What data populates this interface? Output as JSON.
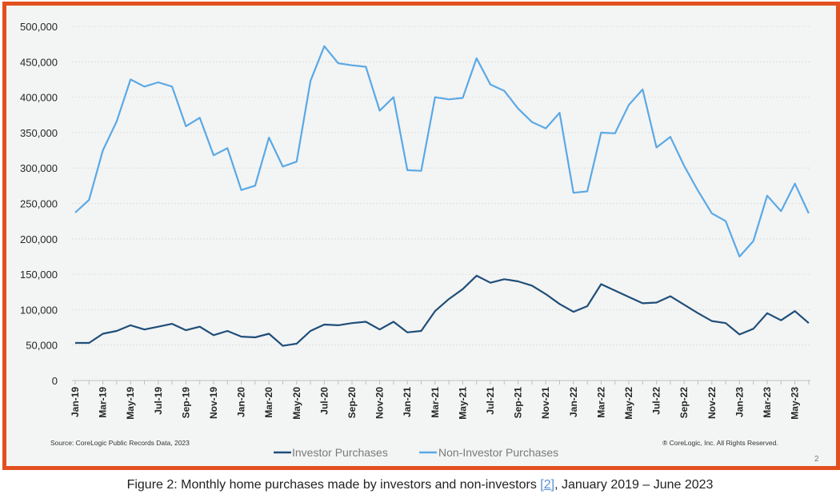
{
  "chart_data": {
    "type": "line",
    "xlabels": [
      "Jan-19",
      "Feb-19",
      "Mar-19",
      "Apr-19",
      "May-19",
      "Jun-19",
      "Jul-19",
      "Aug-19",
      "Sep-19",
      "Oct-19",
      "Nov-19",
      "Dec-19",
      "Jan-20",
      "Feb-20",
      "Mar-20",
      "Apr-20",
      "May-20",
      "Jun-20",
      "Jul-20",
      "Aug-20",
      "Sep-20",
      "Oct-20",
      "Nov-20",
      "Dec-20",
      "Jan-21",
      "Feb-21",
      "Mar-21",
      "Apr-21",
      "May-21",
      "Jun-21",
      "Jul-21",
      "Aug-21",
      "Sep-21",
      "Oct-21",
      "Nov-21",
      "Dec-21",
      "Jan-22",
      "Feb-22",
      "Mar-22",
      "Apr-22",
      "May-22",
      "Jun-22",
      "Jul-22",
      "Aug-22",
      "Sep-22",
      "Oct-22",
      "Nov-22",
      "Dec-22",
      "Jan-23",
      "Feb-23",
      "Mar-23",
      "Apr-23",
      "May-23",
      "Jun-23"
    ],
    "xtick_labels": [
      "Jan-19",
      "Mar-19",
      "May-19",
      "Jul-19",
      "Sep-19",
      "Nov-19",
      "Jan-20",
      "Mar-20",
      "May-20",
      "Jul-20",
      "Sep-20",
      "Nov-20",
      "Jan-21",
      "Mar-21",
      "May-21",
      "Jul-21",
      "Sep-21",
      "Nov-21",
      "Jan-22",
      "Mar-22",
      "May-22",
      "Jul-22",
      "Sep-22",
      "Nov-22",
      "Jan-23",
      "Mar-23",
      "May-23"
    ],
    "yticks": [
      0,
      50000,
      100000,
      150000,
      200000,
      250000,
      300000,
      350000,
      400000,
      450000,
      500000
    ],
    "ytick_labels": [
      "0",
      "50,000",
      "100,000",
      "150,000",
      "200,000",
      "250,000",
      "300,000",
      "350,000",
      "400,000",
      "450,000",
      "500,000"
    ],
    "ylim": [
      0,
      500000
    ],
    "grid": "horizontal",
    "legend_position": "bottom",
    "series": [
      {
        "name": "Investor Purchases",
        "color": "#1f4e79",
        "values": [
          53000,
          53000,
          66000,
          70000,
          78000,
          72000,
          76000,
          80000,
          71000,
          76000,
          64000,
          70000,
          62000,
          61000,
          66000,
          49000,
          52000,
          70000,
          79000,
          78000,
          81000,
          83000,
          72000,
          83000,
          68000,
          70000,
          98000,
          115000,
          129000,
          148000,
          138000,
          143000,
          140000,
          134000,
          122000,
          108000,
          97000,
          105000,
          136000,
          127000,
          118000,
          109000,
          110000,
          119000,
          107000,
          95000,
          84000,
          81000,
          65000,
          73000,
          95000,
          85000,
          98000,
          81000
        ]
      },
      {
        "name": "Non-Investor Purchases",
        "color": "#5aa9e6",
        "values": [
          237000,
          255000,
          325000,
          366000,
          425000,
          415000,
          421000,
          415000,
          359000,
          371000,
          318000,
          328000,
          269000,
          275000,
          343000,
          302000,
          309000,
          423000,
          472000,
          448000,
          445000,
          443000,
          381000,
          400000,
          297000,
          296000,
          400000,
          397000,
          399000,
          455000,
          418000,
          409000,
          384000,
          365000,
          356000,
          378000,
          265000,
          267000,
          350000,
          349000,
          389000,
          411000,
          329000,
          344000,
          303000,
          268000,
          236000,
          225000,
          175000,
          197000,
          261000,
          239000,
          278000,
          236000
        ]
      }
    ],
    "source": "Source: CoreLogic Public Records Data, 2023",
    "copyright": "® CoreLogic, Inc. All Rights Reserved.",
    "page_number": "2"
  },
  "caption": {
    "before": "Figure 2: Monthly home purchases made by investors and non-investors ",
    "ref": "[2]",
    "after": ", January 2019 – June 2023"
  }
}
